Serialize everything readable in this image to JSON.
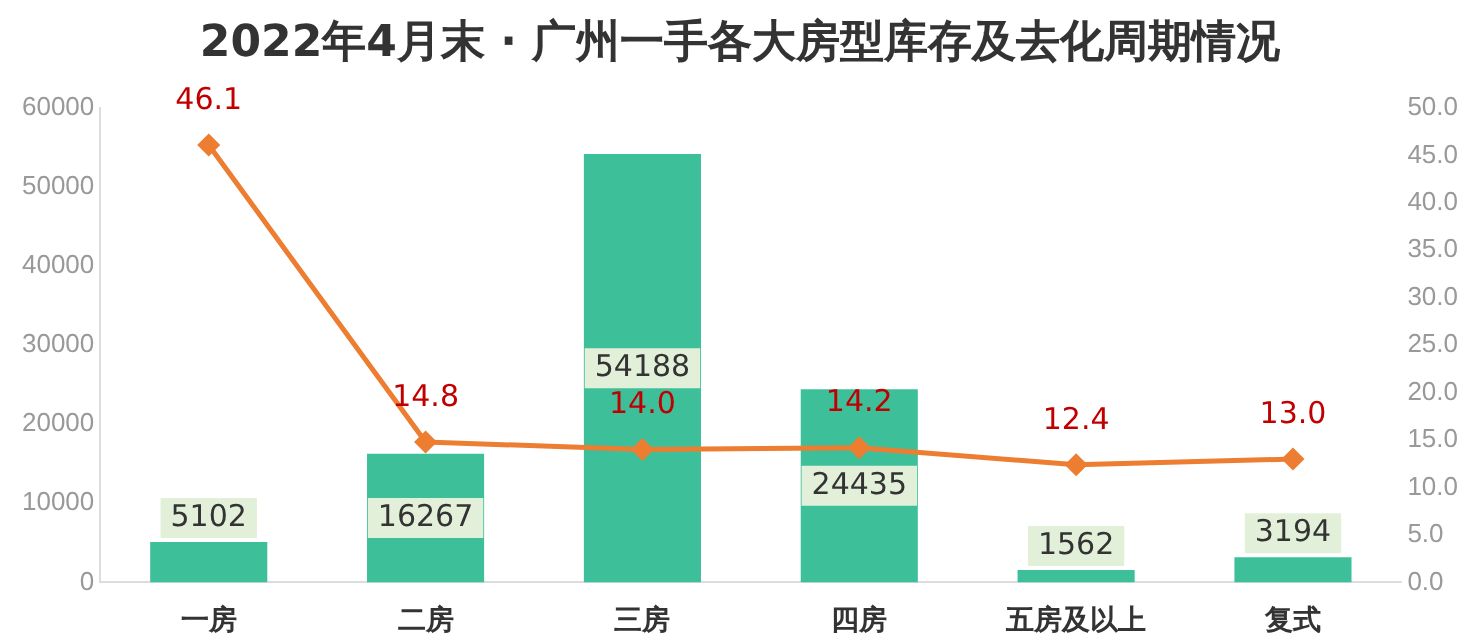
{
  "chart_data": {
    "type": "bar",
    "title": "2022年4月末 · 广州一手各大房型库存及去化周期情况",
    "categories": [
      "一房",
      "二房",
      "三房",
      "四房",
      "五房及以上",
      "复式"
    ],
    "series": [
      {
        "color": "#3dbf9a",
        "values": [
          5102,
          16267,
          54188,
          24435,
          1562,
          3194
        ],
        "value_labels": [
          "5102",
          "16267",
          "54188",
          "24435",
          "1562",
          "3194"
        ]
      },
      {
        "type": "line",
        "axis": "y2",
        "color": "#ed7d31",
        "values": [
          46.1,
          14.8,
          14.0,
          14.2,
          12.4,
          13.0
        ],
        "value_labels": [
          "46.1",
          "14.8",
          "14.0",
          "14.2",
          "12.4",
          "13.0"
        ]
      }
    ],
    "ylim": [
      0,
      60000
    ],
    "yticks": [
      0,
      10000,
      20000,
      30000,
      40000,
      50000,
      60000
    ],
    "y2lim": [
      0,
      50
    ],
    "y2ticks": [
      {
        "value": 0,
        "label": "0.0"
      },
      {
        "value": 5,
        "label": "5.0"
      },
      {
        "value": 10,
        "label": "10.0"
      },
      {
        "value": 15,
        "label": "15.0"
      },
      {
        "value": 20,
        "label": "20.0"
      },
      {
        "value": 25,
        "label": "25.0"
      },
      {
        "value": 30,
        "label": "30.0"
      },
      {
        "value": 35,
        "label": "35.0"
      },
      {
        "value": 40,
        "label": "40.0"
      },
      {
        "value": 45,
        "label": "45.0"
      },
      {
        "value": 50,
        "label": "50.0"
      }
    ],
    "grid": false,
    "legend": false,
    "marker": "diamond"
  }
}
